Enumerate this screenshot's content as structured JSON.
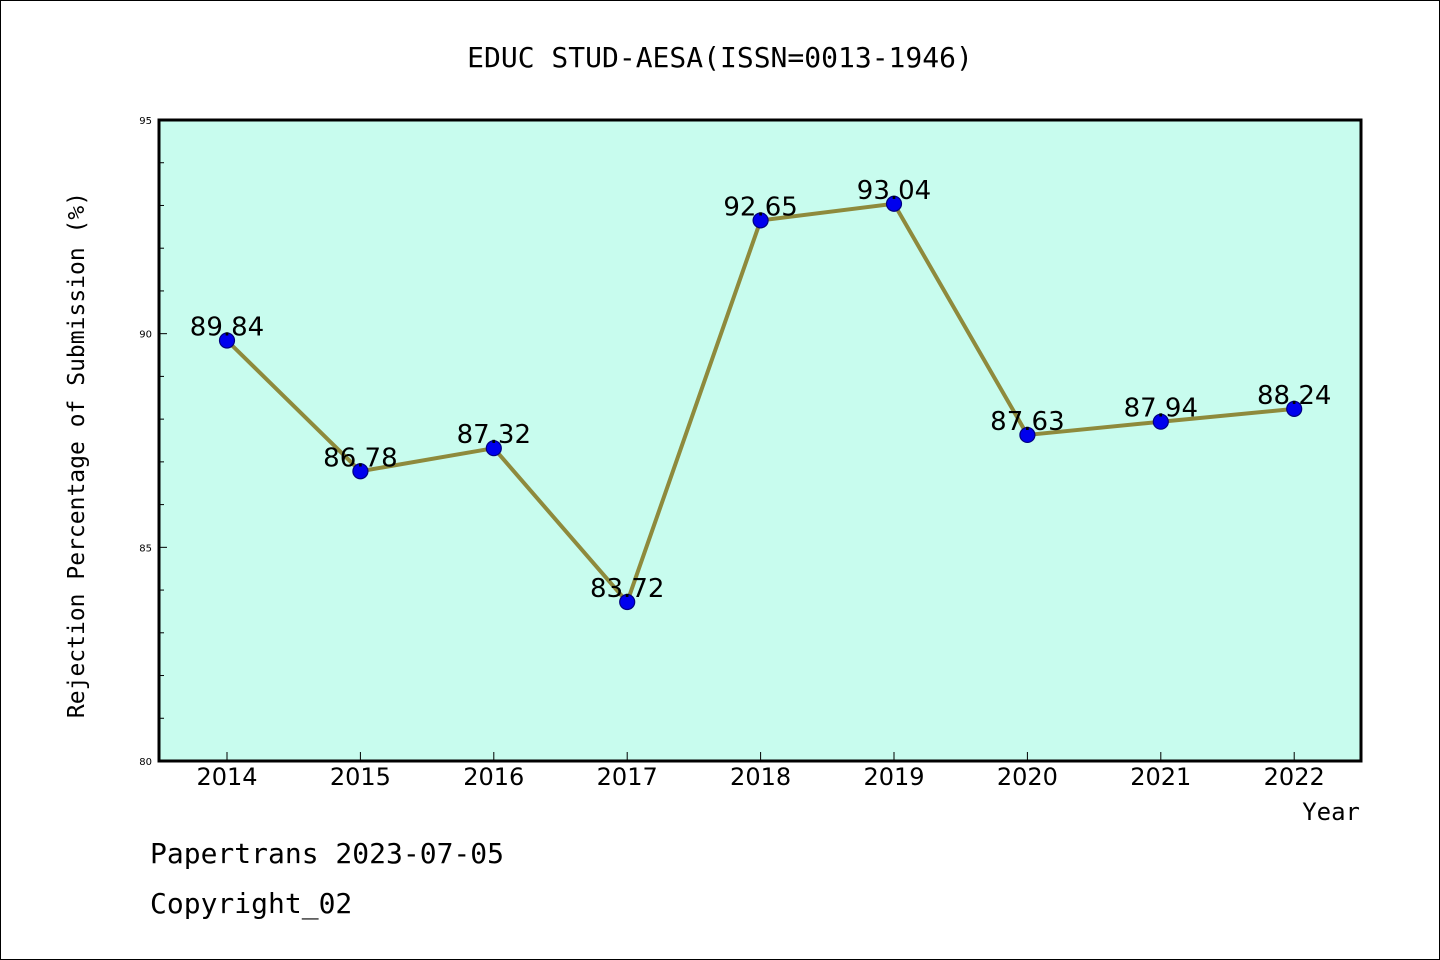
{
  "chart_data": {
    "type": "line",
    "title": "EDUC STUD-AESA(ISSN=0013-1946)",
    "xlabel": "Year",
    "ylabel": "Rejection Percentage of Submission (%)",
    "categories": [
      "2014",
      "2015",
      "2016",
      "2017",
      "2018",
      "2019",
      "2020",
      "2021",
      "2022"
    ],
    "values": [
      89.84,
      86.78,
      87.32,
      83.72,
      92.65,
      93.04,
      87.63,
      87.94,
      88.24
    ],
    "value_labels": [
      "89.84",
      "86.78",
      "87.32",
      "83.72",
      "92.65",
      "93.04",
      "87.63",
      "87.94",
      "88.24"
    ],
    "ylim": [
      80,
      95
    ],
    "yticks": [
      "95",
      "90",
      "85",
      "80"
    ],
    "grid": false,
    "legend": "none",
    "colors": {
      "plot_background": "#c8fcee",
      "line": "#8e8a3c",
      "marker": "#0000ee",
      "marker_edge": "#000080"
    }
  },
  "footer": {
    "line1": "Papertrans 2023-07-05",
    "line2": "Copyright_02"
  }
}
